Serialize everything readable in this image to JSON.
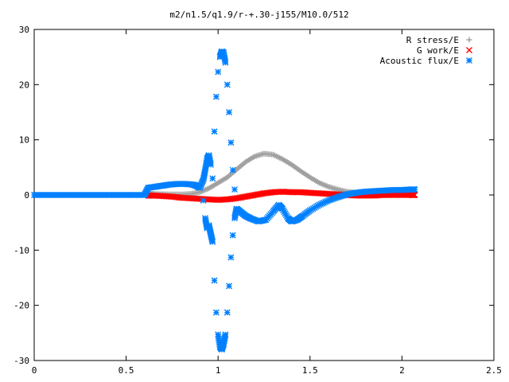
{
  "chart_data": {
    "type": "scatter",
    "title": "m2/n1.5/q1.9/r-+.30-j155/M10.0/512",
    "xlabel": "",
    "ylabel": "",
    "xlim": [
      0,
      2.5
    ],
    "ylim": [
      -30,
      30
    ],
    "x_ticks": [
      {
        "value": 0,
        "label": "0"
      },
      {
        "value": 0.5,
        "label": "0.5"
      },
      {
        "value": 1,
        "label": "1"
      },
      {
        "value": 1.5,
        "label": "1.5"
      },
      {
        "value": 2,
        "label": "2"
      },
      {
        "value": 2.5,
        "label": "2.5"
      }
    ],
    "y_ticks": [
      {
        "value": -30,
        "label": "-30"
      },
      {
        "value": -20,
        "label": "-20"
      },
      {
        "value": -10,
        "label": "-10"
      },
      {
        "value": 0,
        "label": "0"
      },
      {
        "value": 10,
        "label": "10"
      },
      {
        "value": 20,
        "label": "20"
      },
      {
        "value": 30,
        "label": "30"
      }
    ],
    "grid": false,
    "legend_position": "top-right",
    "series": [
      {
        "name": "R stress/E",
        "marker": "plus",
        "color": "#a0a0a0",
        "points": [
          [
            0.62,
            0.2
          ],
          [
            0.65,
            0.2
          ],
          [
            0.7,
            0.15
          ],
          [
            0.75,
            0.1
          ],
          [
            0.8,
            0.1
          ],
          [
            0.85,
            0.2
          ],
          [
            0.9,
            0.5
          ],
          [
            0.95,
            1.2
          ],
          [
            1.0,
            2.2
          ],
          [
            1.05,
            3.2
          ],
          [
            1.1,
            4.6
          ],
          [
            1.15,
            6.0
          ],
          [
            1.2,
            7.0
          ],
          [
            1.25,
            7.5
          ],
          [
            1.3,
            7.3
          ],
          [
            1.35,
            6.5
          ],
          [
            1.4,
            5.5
          ],
          [
            1.45,
            4.3
          ],
          [
            1.5,
            3.2
          ],
          [
            1.55,
            2.2
          ],
          [
            1.6,
            1.5
          ],
          [
            1.65,
            1.0
          ],
          [
            1.7,
            0.6
          ],
          [
            1.75,
            0.4
          ],
          [
            1.8,
            0.3
          ],
          [
            1.85,
            0.3
          ],
          [
            1.9,
            0.3
          ],
          [
            1.95,
            0.4
          ],
          [
            2.0,
            0.5
          ],
          [
            2.05,
            0.6
          ],
          [
            2.07,
            0.6
          ]
        ]
      },
      {
        "name": "G work/E",
        "marker": "cross",
        "color": "#ff0000",
        "points": [
          [
            0.62,
            -0.1
          ],
          [
            0.65,
            -0.1
          ],
          [
            0.7,
            -0.2
          ],
          [
            0.75,
            -0.3
          ],
          [
            0.8,
            -0.5
          ],
          [
            0.85,
            -0.6
          ],
          [
            0.9,
            -0.7
          ],
          [
            0.95,
            -0.8
          ],
          [
            1.0,
            -0.9
          ],
          [
            1.05,
            -0.8
          ],
          [
            1.1,
            -0.6
          ],
          [
            1.15,
            -0.3
          ],
          [
            1.2,
            0.0
          ],
          [
            1.25,
            0.3
          ],
          [
            1.3,
            0.5
          ],
          [
            1.35,
            0.6
          ],
          [
            1.4,
            0.5
          ],
          [
            1.45,
            0.5
          ],
          [
            1.5,
            0.4
          ],
          [
            1.55,
            0.3
          ],
          [
            1.6,
            0.2
          ],
          [
            1.65,
            0.1
          ],
          [
            1.7,
            0.0
          ],
          [
            1.75,
            -0.1
          ],
          [
            1.8,
            -0.1
          ],
          [
            1.85,
            -0.1
          ],
          [
            1.9,
            0.0
          ],
          [
            1.95,
            0.0
          ],
          [
            2.0,
            0.0
          ],
          [
            2.05,
            0.0
          ],
          [
            2.07,
            0.0
          ]
        ]
      },
      {
        "name": "Acoustic flux/E",
        "marker": "star",
        "color": "#0080ff",
        "points": [
          [
            0.0,
            0.0
          ],
          [
            0.05,
            0.0
          ],
          [
            0.1,
            0.0
          ],
          [
            0.15,
            0.0
          ],
          [
            0.2,
            0.0
          ],
          [
            0.25,
            0.0
          ],
          [
            0.3,
            0.0
          ],
          [
            0.35,
            0.0
          ],
          [
            0.4,
            0.0
          ],
          [
            0.45,
            0.0
          ],
          [
            0.5,
            0.0
          ],
          [
            0.55,
            0.0
          ],
          [
            0.6,
            0.0
          ],
          [
            0.62,
            1.3
          ],
          [
            0.66,
            1.5
          ],
          [
            0.7,
            1.7
          ],
          [
            0.74,
            1.9
          ],
          [
            0.78,
            2.0
          ],
          [
            0.82,
            2.0
          ],
          [
            0.86,
            1.9
          ],
          [
            0.88,
            1.7
          ],
          [
            0.9,
            1.3
          ],
          [
            0.92,
            2.8
          ],
          [
            0.93,
            4.5
          ],
          [
            0.94,
            6.5
          ],
          [
            0.95,
            7.2
          ],
          [
            0.96,
            5.5
          ],
          [
            0.97,
            3.0
          ],
          [
            0.98,
            11.5
          ],
          [
            0.99,
            17.8
          ],
          [
            1.0,
            22.3
          ],
          [
            1.01,
            25.0
          ],
          [
            1.02,
            26.0
          ],
          [
            1.03,
            25.8
          ],
          [
            1.04,
            24.0
          ],
          [
            1.05,
            20.0
          ],
          [
            1.06,
            15.0
          ],
          [
            1.07,
            9.5
          ],
          [
            1.08,
            4.5
          ],
          [
            1.09,
            1.0
          ],
          [
            0.92,
            -1.0
          ],
          [
            0.93,
            -4.2
          ],
          [
            0.94,
            -6.0
          ],
          [
            0.95,
            -5.5
          ],
          [
            0.96,
            -7.0
          ],
          [
            0.97,
            -8.5
          ],
          [
            0.98,
            -15.5
          ],
          [
            0.99,
            -21.3
          ],
          [
            1.0,
            -25.3
          ],
          [
            1.01,
            -27.5
          ],
          [
            1.02,
            -28.0
          ],
          [
            1.03,
            -27.0
          ],
          [
            1.04,
            -25.3
          ],
          [
            1.05,
            -21.3
          ],
          [
            1.06,
            -16.5
          ],
          [
            1.07,
            -11.3
          ],
          [
            1.08,
            -7.3
          ],
          [
            1.09,
            -4.2
          ],
          [
            1.1,
            -2.5
          ],
          [
            1.12,
            -3.0
          ],
          [
            1.15,
            -3.8
          ],
          [
            1.18,
            -4.3
          ],
          [
            1.22,
            -4.8
          ],
          [
            1.26,
            -4.5
          ],
          [
            1.3,
            -3.0
          ],
          [
            1.33,
            -1.8
          ],
          [
            1.35,
            -2.5
          ],
          [
            1.38,
            -4.2
          ],
          [
            1.4,
            -4.8
          ],
          [
            1.43,
            -4.5
          ],
          [
            1.46,
            -3.8
          ],
          [
            1.5,
            -2.8
          ],
          [
            1.55,
            -1.8
          ],
          [
            1.6,
            -1.0
          ],
          [
            1.65,
            -0.4
          ],
          [
            1.7,
            0.1
          ],
          [
            1.75,
            0.4
          ],
          [
            1.8,
            0.6
          ],
          [
            1.85,
            0.7
          ],
          [
            1.9,
            0.8
          ],
          [
            1.95,
            0.9
          ],
          [
            2.0,
            0.9
          ],
          [
            2.05,
            1.0
          ],
          [
            2.07,
            1.0
          ]
        ]
      }
    ]
  }
}
